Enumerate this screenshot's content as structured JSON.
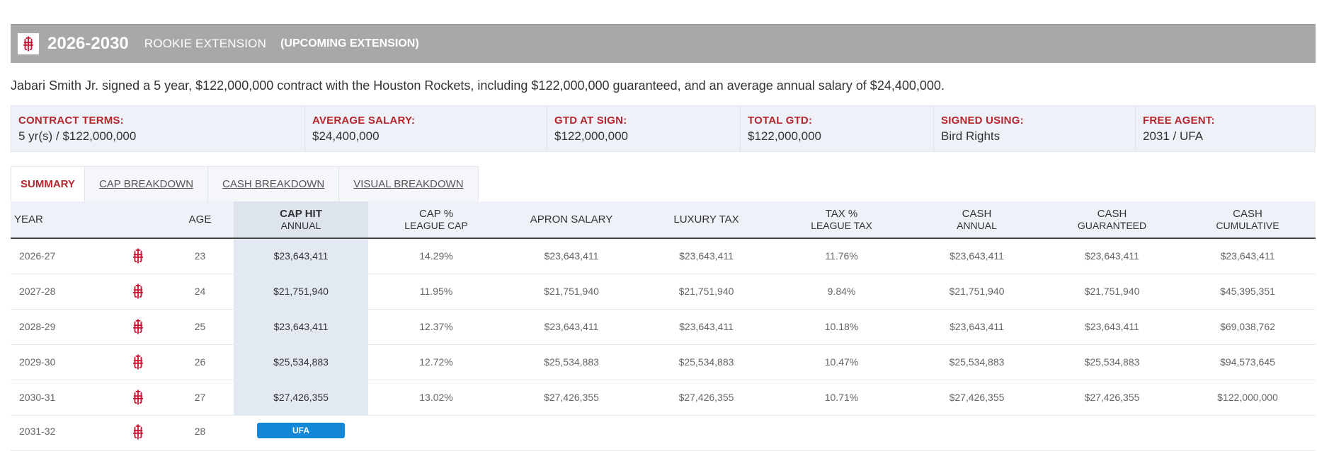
{
  "header": {
    "years": "2026-2030",
    "contract_type": "ROOKIE EXTENSION",
    "status": "(UPCOMING EXTENSION)"
  },
  "description": "Jabari Smith Jr. signed a 5 year, $122,000,000 contract with the Houston Rockets, including $122,000,000 guaranteed, and an average annual salary of $24,400,000.",
  "terms": [
    {
      "label": "CONTRACT TERMS:",
      "value": "5 yr(s) / $122,000,000"
    },
    {
      "label": "AVERAGE SALARY:",
      "value": "$24,400,000"
    },
    {
      "label": "GTD AT SIGN:",
      "value": "$122,000,000"
    },
    {
      "label": "TOTAL GTD:",
      "value": "$122,000,000"
    },
    {
      "label": "SIGNED USING:",
      "value": "Bird Rights"
    },
    {
      "label": "FREE AGENT:",
      "value": "2031 / UFA"
    }
  ],
  "tabs": [
    {
      "label": "SUMMARY",
      "active": true
    },
    {
      "label": "CAP BREAKDOWN"
    },
    {
      "label": "CASH BREAKDOWN"
    },
    {
      "label": "VISUAL BREAKDOWN"
    }
  ],
  "columns": {
    "year": "YEAR",
    "age": "AGE",
    "cap_hit": [
      "CAP HIT",
      "ANNUAL"
    ],
    "cap_pct": [
      "CAP %",
      "LEAGUE CAP"
    ],
    "apron": "APRON SALARY",
    "lux": "LUXURY TAX",
    "tax_pct": [
      "TAX %",
      "LEAGUE TAX"
    ],
    "cash_annual": [
      "CASH",
      "ANNUAL"
    ],
    "cash_gtd": [
      "CASH",
      "GUARANTEED"
    ],
    "cash_cum": [
      "CASH",
      "CUMULATIVE"
    ]
  },
  "rows": [
    {
      "year": "2026-27",
      "age": "23",
      "cap_hit": "$23,643,411",
      "cap_pct": "14.29%",
      "apron": "$23,643,411",
      "lux": "$23,643,411",
      "tax_pct": "11.76%",
      "cash_annual": "$23,643,411",
      "cash_gtd": "$23,643,411",
      "cash_cum": "$23,643,411"
    },
    {
      "year": "2027-28",
      "age": "24",
      "cap_hit": "$21,751,940",
      "cap_pct": "11.95%",
      "apron": "$21,751,940",
      "lux": "$21,751,940",
      "tax_pct": "9.84%",
      "cash_annual": "$21,751,940",
      "cash_gtd": "$21,751,940",
      "cash_cum": "$45,395,351"
    },
    {
      "year": "2028-29",
      "age": "25",
      "cap_hit": "$23,643,411",
      "cap_pct": "12.37%",
      "apron": "$23,643,411",
      "lux": "$23,643,411",
      "tax_pct": "10.18%",
      "cash_annual": "$23,643,411",
      "cash_gtd": "$23,643,411",
      "cash_cum": "$69,038,762"
    },
    {
      "year": "2029-30",
      "age": "26",
      "cap_hit": "$25,534,883",
      "cap_pct": "12.72%",
      "apron": "$25,534,883",
      "lux": "$25,534,883",
      "tax_pct": "10.47%",
      "cash_annual": "$25,534,883",
      "cash_gtd": "$25,534,883",
      "cash_cum": "$94,573,645"
    },
    {
      "year": "2030-31",
      "age": "27",
      "cap_hit": "$27,426,355",
      "cap_pct": "13.02%",
      "apron": "$27,426,355",
      "lux": "$27,426,355",
      "tax_pct": "10.71%",
      "cash_annual": "$27,426,355",
      "cash_gtd": "$27,426,355",
      "cash_cum": "$122,000,000"
    }
  ],
  "partial_row": {
    "year": "2031-32",
    "age": "28",
    "badge": "UFA"
  },
  "icons": {
    "team_logo": "rockets-logo-icon"
  },
  "colors": {
    "accent_red": "#b3272d",
    "ufa_blue": "#1289d8",
    "header_gray": "#a8a8a8"
  }
}
